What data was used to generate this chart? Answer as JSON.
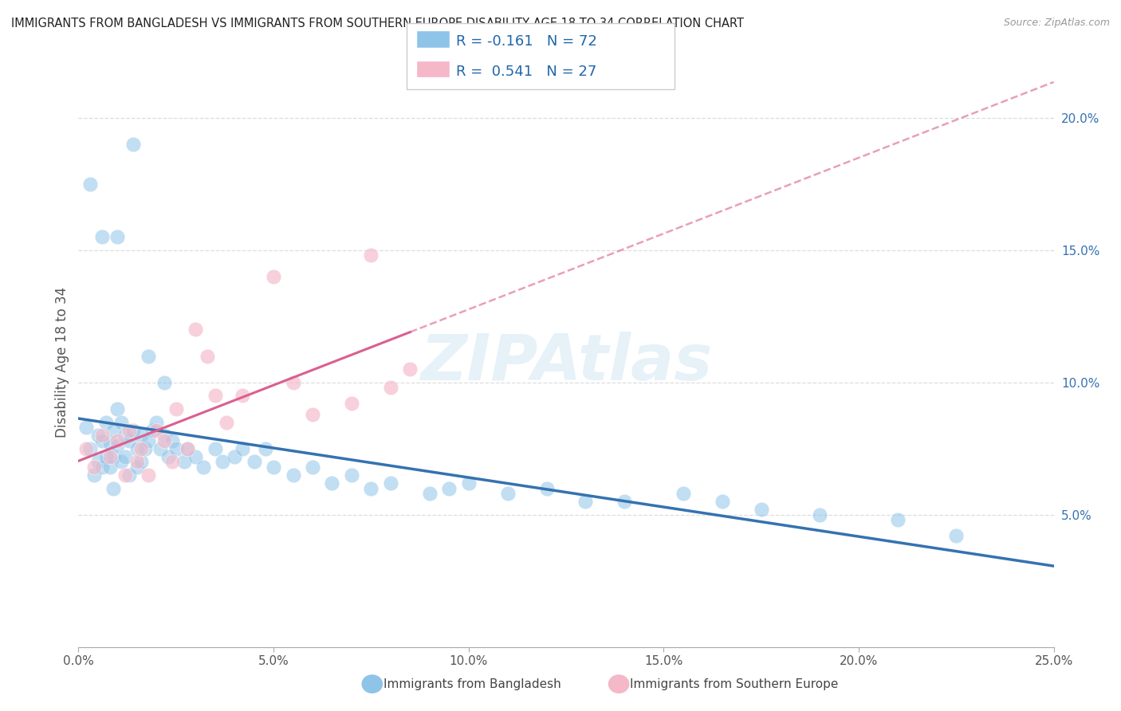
{
  "title": "IMMIGRANTS FROM BANGLADESH VS IMMIGRANTS FROM SOUTHERN EUROPE DISABILITY AGE 18 TO 34 CORRELATION CHART",
  "source": "Source: ZipAtlas.com",
  "ylabel": "Disability Age 18 to 34",
  "xlim": [
    0.0,
    0.25
  ],
  "ylim": [
    0.0,
    0.215
  ],
  "xticks": [
    0.0,
    0.05,
    0.1,
    0.15,
    0.2,
    0.25
  ],
  "xticklabels": [
    "0.0%",
    "5.0%",
    "10.0%",
    "15.0%",
    "20.0%",
    "25.0%"
  ],
  "yticks_right": [
    0.05,
    0.1,
    0.15,
    0.2
  ],
  "yticklabels_right": [
    "5.0%",
    "10.0%",
    "15.0%",
    "20.0%"
  ],
  "R_blue": -0.161,
  "N_blue": 72,
  "R_pink": 0.541,
  "N_pink": 27,
  "blue_color": "#8ec4e8",
  "pink_color": "#f4b8c8",
  "blue_line_color": "#3572b0",
  "pink_line_color": "#d96090",
  "watermark": "ZIPAtlas",
  "legend_label_blue": "Immigrants from Bangladesh",
  "legend_label_pink": "Immigrants from Southern Europe",
  "blue_scatter_x": [
    0.002,
    0.003,
    0.004,
    0.005,
    0.005,
    0.006,
    0.006,
    0.007,
    0.007,
    0.008,
    0.008,
    0.009,
    0.009,
    0.009,
    0.01,
    0.01,
    0.011,
    0.011,
    0.012,
    0.012,
    0.013,
    0.013,
    0.014,
    0.015,
    0.015,
    0.016,
    0.016,
    0.017,
    0.018,
    0.019,
    0.02,
    0.021,
    0.022,
    0.023,
    0.024,
    0.025,
    0.027,
    0.028,
    0.03,
    0.032,
    0.035,
    0.037,
    0.04,
    0.042,
    0.045,
    0.05,
    0.055,
    0.06,
    0.065,
    0.07,
    0.075,
    0.08,
    0.09,
    0.095,
    0.1,
    0.11,
    0.12,
    0.13,
    0.14,
    0.155,
    0.165,
    0.175,
    0.19,
    0.21,
    0.225,
    0.003,
    0.006,
    0.01,
    0.014,
    0.018,
    0.022,
    0.048
  ],
  "blue_scatter_y": [
    0.083,
    0.075,
    0.065,
    0.08,
    0.07,
    0.078,
    0.068,
    0.072,
    0.085,
    0.077,
    0.068,
    0.082,
    0.072,
    0.06,
    0.076,
    0.09,
    0.085,
    0.07,
    0.08,
    0.072,
    0.078,
    0.065,
    0.082,
    0.075,
    0.068,
    0.08,
    0.07,
    0.075,
    0.078,
    0.082,
    0.085,
    0.075,
    0.08,
    0.072,
    0.078,
    0.075,
    0.07,
    0.075,
    0.072,
    0.068,
    0.075,
    0.07,
    0.072,
    0.075,
    0.07,
    0.068,
    0.065,
    0.068,
    0.062,
    0.065,
    0.06,
    0.062,
    0.058,
    0.06,
    0.062,
    0.058,
    0.06,
    0.055,
    0.055,
    0.058,
    0.055,
    0.052,
    0.05,
    0.048,
    0.042,
    0.175,
    0.155,
    0.155,
    0.19,
    0.11,
    0.1,
    0.075
  ],
  "pink_scatter_x": [
    0.002,
    0.004,
    0.006,
    0.008,
    0.01,
    0.012,
    0.013,
    0.015,
    0.016,
    0.018,
    0.02,
    0.022,
    0.024,
    0.025,
    0.028,
    0.03,
    0.033,
    0.035,
    0.038,
    0.042,
    0.05,
    0.055,
    0.06,
    0.07,
    0.075,
    0.08,
    0.085
  ],
  "pink_scatter_y": [
    0.075,
    0.068,
    0.08,
    0.072,
    0.078,
    0.065,
    0.082,
    0.07,
    0.075,
    0.065,
    0.082,
    0.078,
    0.07,
    0.09,
    0.075,
    0.12,
    0.11,
    0.095,
    0.085,
    0.095,
    0.14,
    0.1,
    0.088,
    0.092,
    0.148,
    0.098,
    0.105
  ]
}
